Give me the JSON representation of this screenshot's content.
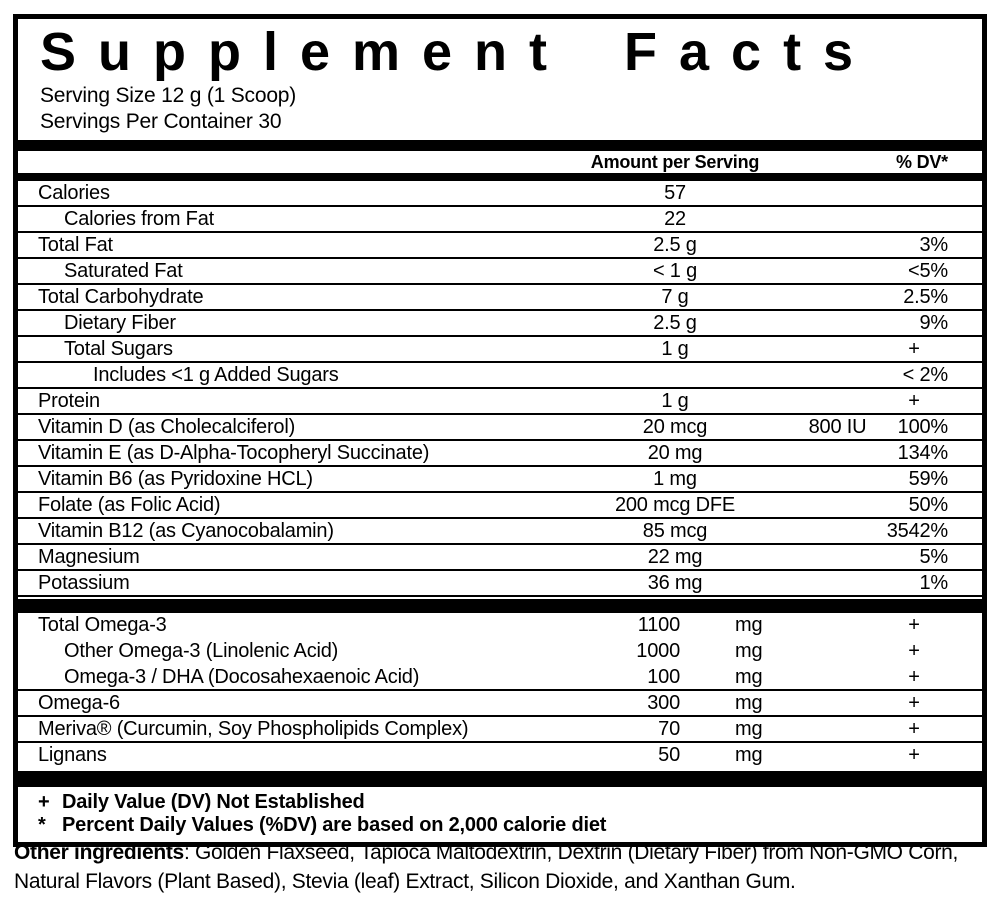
{
  "label": {
    "title": "Supplement Facts",
    "serving_size": "Serving Size 12 g (1 Scoop)",
    "servings_per_container": "Servings Per Container 30",
    "columns": {
      "amount": "Amount per Serving",
      "dv": "% DV*"
    },
    "colors": {
      "ink": "#000000",
      "background": "#ffffff"
    }
  },
  "sections": [
    {
      "name": "nutrients",
      "rows": [
        {
          "name": "Calories",
          "indent": 0,
          "amount": "57",
          "extra": "",
          "dv": "",
          "rule": true
        },
        {
          "name": "Calories from Fat",
          "indent": 1,
          "amount": "22",
          "extra": "",
          "dv": "",
          "rule": true
        },
        {
          "name": "Total Fat",
          "indent": 0,
          "amount": "2.5 g",
          "extra": "",
          "dv": "3%",
          "rule": true
        },
        {
          "name": "Saturated Fat",
          "indent": 1,
          "amount": "< 1 g",
          "extra": "",
          "dv": "<5%",
          "rule": true
        },
        {
          "name": "Total Carbohydrate",
          "indent": 0,
          "amount": "7 g",
          "extra": "",
          "dv": "2.5%",
          "rule": true
        },
        {
          "name": "Dietary Fiber",
          "indent": 1,
          "amount": "2.5 g",
          "extra": "",
          "dv": "9%",
          "rule": true
        },
        {
          "name": "Total Sugars",
          "indent": 1,
          "amount": "1 g",
          "extra": "",
          "dv": "+",
          "rule": true
        },
        {
          "name": "Includes <1 g Added Sugars",
          "indent": 2,
          "amount": "",
          "extra": "",
          "dv": "< 2%",
          "rule": true
        },
        {
          "name": "Protein",
          "indent": 0,
          "amount": "1 g",
          "extra": "",
          "dv": "+",
          "rule": true
        },
        {
          "name": "Vitamin D (as Cholecalciferol)",
          "indent": 0,
          "amount": "20 mcg",
          "extra": "800 IU",
          "dv": "100%",
          "rule": true
        },
        {
          "name": "Vitamin E (as D-Alpha-Tocopheryl Succinate)",
          "indent": 0,
          "amount": "20 mg",
          "extra": "",
          "dv": "134%",
          "rule": true
        },
        {
          "name": "Vitamin B6 (as Pyridoxine HCL)",
          "indent": 0,
          "amount": "1 mg",
          "extra": "",
          "dv": "59%",
          "rule": true
        },
        {
          "name": "Folate (as Folic Acid)",
          "indent": 0,
          "amount": "200 mcg DFE",
          "extra": "",
          "dv": "50%",
          "rule": true
        },
        {
          "name": "Vitamin B12 (as Cyanocobalamin)",
          "indent": 0,
          "amount": "85 mcg",
          "extra": "",
          "dv": "3542%",
          "rule": true
        },
        {
          "name": "Magnesium",
          "indent": 0,
          "amount": "22 mg",
          "extra": "",
          "dv": "5%",
          "rule": true
        },
        {
          "name": "Potassium",
          "indent": 0,
          "amount": "36 mg",
          "extra": "",
          "dv": "1%",
          "rule": true
        }
      ]
    },
    {
      "name": "other-compounds",
      "rows": [
        {
          "name": "Total Omega-3",
          "indent": 0,
          "amount": "1100",
          "unit": "mg",
          "dv": "+",
          "rule": false
        },
        {
          "name": "Other Omega-3 (Linolenic Acid)",
          "indent": 1,
          "amount": "1000",
          "unit": "mg",
          "dv": "+",
          "rule": false
        },
        {
          "name": "Omega-3 / DHA (Docosahexaenoic Acid)",
          "indent": 1,
          "amount": "100",
          "unit": "mg",
          "dv": "+",
          "rule": true
        },
        {
          "name": "Omega-6",
          "indent": 0,
          "amount": "300",
          "unit": "mg",
          "dv": "+",
          "rule": true
        },
        {
          "name": "Meriva® (Curcumin, Soy Phospholipids Complex)",
          "indent": 0,
          "amount": "70",
          "unit": "mg",
          "dv": "+",
          "rule": true
        },
        {
          "name": "Lignans",
          "indent": 0,
          "amount": "50",
          "unit": "mg",
          "dv": "+",
          "rule": false
        }
      ]
    }
  ],
  "footnotes": [
    {
      "marker": "+",
      "text": "Daily Value (DV) Not Established"
    },
    {
      "marker": "*",
      "text": "Percent Daily Values (%DV) are based on 2,000 calorie diet"
    }
  ],
  "other_ingredients": {
    "label": "Other ingredients",
    "text": ": Golden Flaxseed, Tapioca Maltodextrin, Dextrin (Dietary Fiber) from Non-GMO Corn, Natural Flavors (Plant Based), Stevia (leaf) Extract, Silicon Dioxide, and Xanthan Gum."
  }
}
